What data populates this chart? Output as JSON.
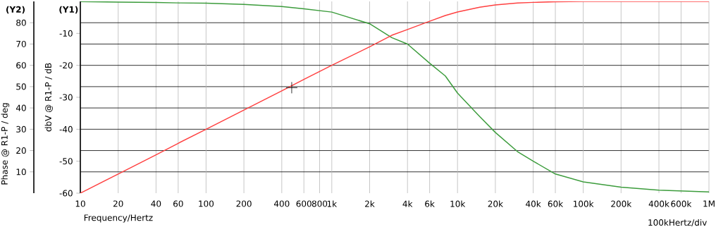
{
  "chart_data": {
    "type": "line",
    "xlabel": "Frequency/Hertz",
    "ylabel": "dbV @ R1-P / dB",
    "y2label": "Phase @ R1-P / deg",
    "annotations": [
      "(Y1)",
      "(Y2)",
      "100kHertz/div"
    ],
    "x": [
      10,
      20,
      40,
      60,
      100,
      200,
      400,
      600,
      1000,
      2000,
      3000,
      4000,
      6000,
      8000,
      10000,
      15000,
      20000,
      30000,
      40000,
      60000,
      100000,
      200000,
      400000,
      1000000
    ],
    "series": [
      {
        "color": "#ff4040",
        "values": [
          -60,
          -54,
          -48,
          -44.4,
          -40,
          -34,
          -28,
          -24.4,
          -20,
          -14.2,
          -10.6,
          -8.8,
          -6.2,
          -4.4,
          -3.3,
          -1.8,
          -1.1,
          -0.5,
          -0.3,
          -0.1,
          0,
          0,
          0,
          0
        ]
      },
      {
        "color": "#3c9c3c",
        "axis": "y2",
        "values": [
          89.9,
          89.7,
          89.5,
          89.3,
          89.2,
          88.6,
          87.6,
          86.5,
          85,
          79.5,
          73,
          70,
          61,
          55,
          47,
          36,
          28.5,
          19.5,
          15,
          9,
          5.3,
          2.8,
          1.4,
          0.6
        ]
      },
      {
        "type": "scatter",
        "marker": "cross",
        "color": "#000000",
        "x": [
          480
        ],
        "values": [
          -27
        ]
      }
    ],
    "log": "x",
    "grid": true,
    "xlim": [
      10,
      1000000
    ],
    "xticks": [
      10,
      20,
      40,
      60,
      100,
      200,
      400,
      600,
      800,
      {
        "value": 1000,
        "label": "1k"
      },
      {
        "value": 2000,
        "label": "2k"
      },
      {
        "value": 4000,
        "label": "4k"
      },
      {
        "value": 6000,
        "label": "6k"
      },
      {
        "value": 10000,
        "label": "10k"
      },
      {
        "value": 20000,
        "label": "20k"
      },
      {
        "value": 40000,
        "label": "40k"
      },
      {
        "value": 60000,
        "label": "60k"
      },
      {
        "value": 100000,
        "label": "100k"
      },
      {
        "value": 200000,
        "label": "200k"
      },
      {
        "value": 400000,
        "label": "400k"
      },
      {
        "value": 600000,
        "label": "600k"
      },
      {
        "value": 1000000,
        "label": "1M"
      }
    ],
    "ylim": [
      -60,
      0
    ],
    "yticks": [
      -60,
      -50,
      -40,
      -30,
      -20,
      -10
    ],
    "y2lim": [
      0,
      90
    ],
    "y2ticks": [
      10,
      20,
      30,
      40,
      50,
      60,
      70,
      80
    ]
  }
}
